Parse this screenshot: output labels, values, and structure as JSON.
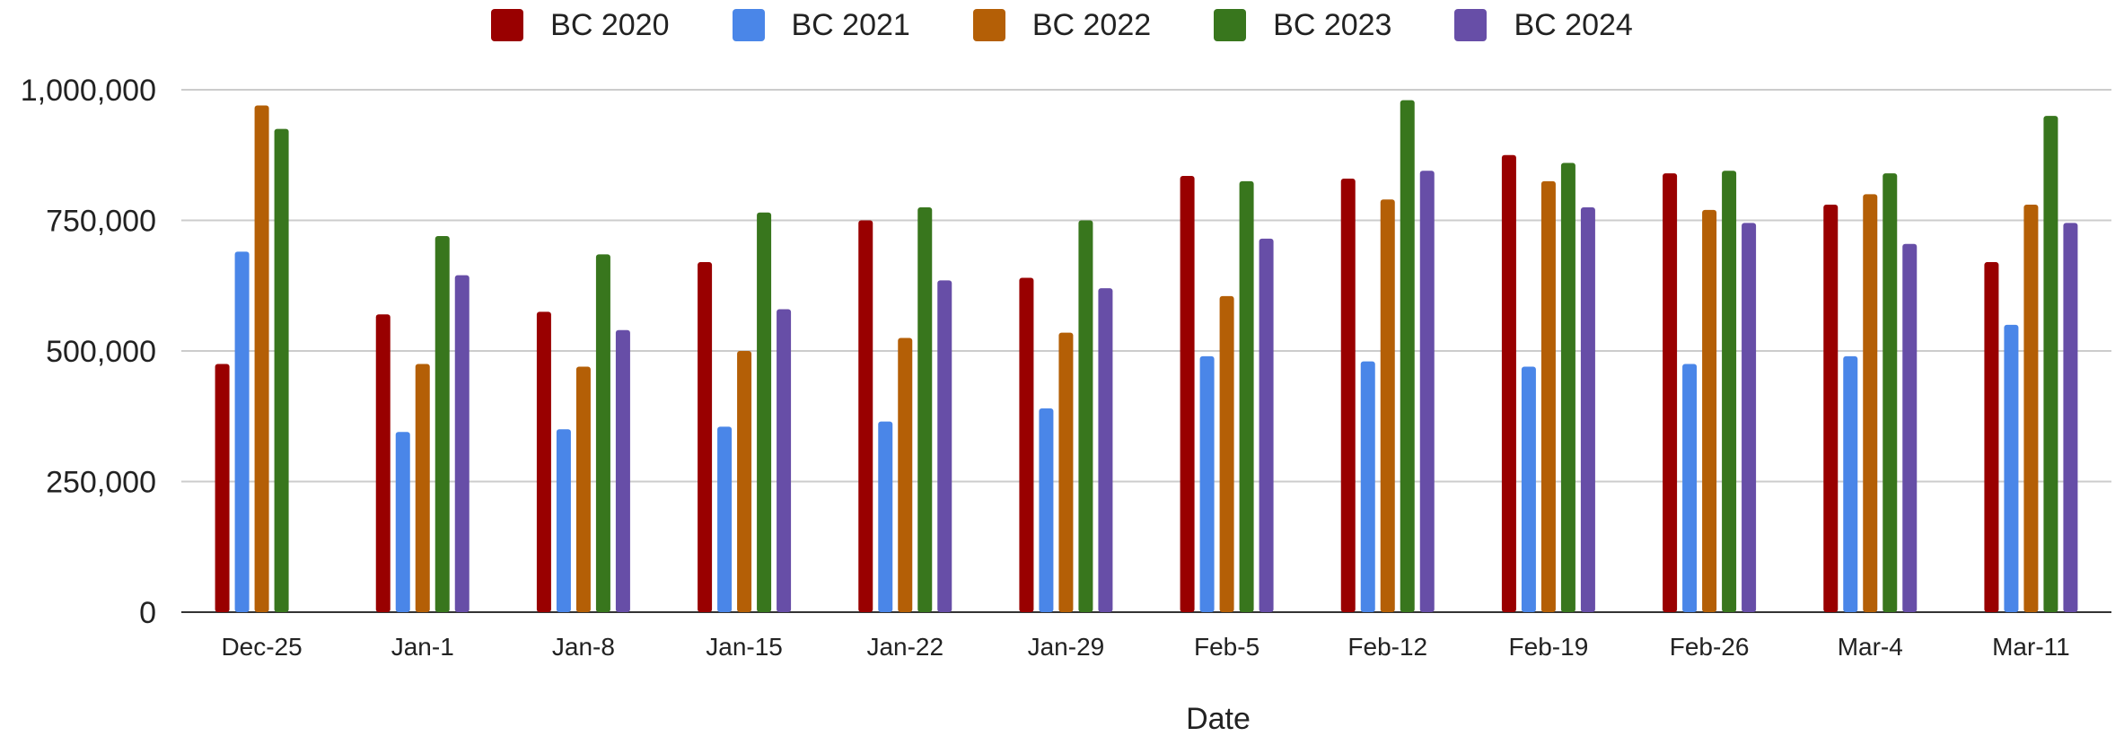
{
  "chart_data": {
    "type": "bar",
    "title": "",
    "xlabel": "Date",
    "ylabel": "",
    "ylim": [
      0,
      1000000
    ],
    "yticks": [
      0,
      250000,
      500000,
      750000,
      1000000
    ],
    "ytick_labels": [
      "0",
      "250,000",
      "500,000",
      "750,000",
      "1,000,000"
    ],
    "grid": true,
    "legend_position": "top",
    "categories": [
      "Dec-25",
      "Jan-1",
      "Jan-8",
      "Jan-15",
      "Jan-22",
      "Jan-29",
      "Feb-5",
      "Feb-12",
      "Feb-19",
      "Feb-26",
      "Mar-4",
      "Mar-11"
    ],
    "series": [
      {
        "name": "BC 2020",
        "color": "#990000",
        "values": [
          475000,
          570000,
          575000,
          670000,
          750000,
          640000,
          835000,
          830000,
          875000,
          840000,
          780000,
          670000
        ]
      },
      {
        "name": "BC 2021",
        "color": "#4a86e8",
        "values": [
          690000,
          345000,
          350000,
          355000,
          365000,
          390000,
          490000,
          480000,
          470000,
          475000,
          490000,
          550000
        ]
      },
      {
        "name": "BC 2022",
        "color": "#b45f06",
        "values": [
          970000,
          475000,
          470000,
          500000,
          525000,
          535000,
          605000,
          790000,
          825000,
          770000,
          800000,
          780000
        ]
      },
      {
        "name": "BC 2023",
        "color": "#38761d",
        "values": [
          925000,
          720000,
          685000,
          765000,
          775000,
          750000,
          825000,
          980000,
          860000,
          845000,
          840000,
          950000
        ]
      },
      {
        "name": "BC 2024",
        "color": "#674ea7",
        "values": [
          null,
          645000,
          540000,
          580000,
          635000,
          620000,
          715000,
          845000,
          775000,
          745000,
          705000,
          745000
        ]
      }
    ]
  }
}
